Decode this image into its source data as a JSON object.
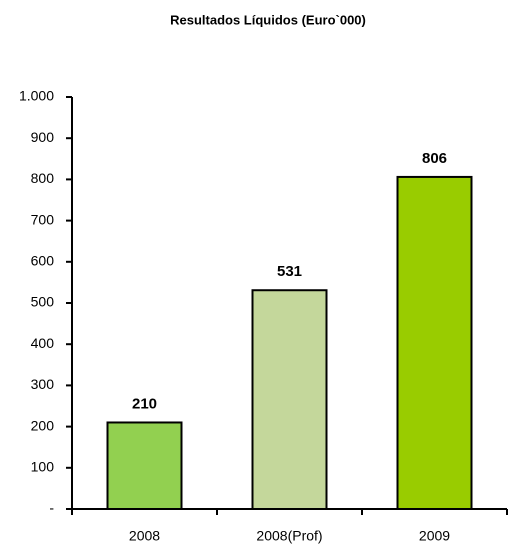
{
  "chart_data": {
    "type": "bar",
    "title": "Resultados Líquidos (Euro`000)",
    "categories": [
      "2008",
      "2008(Prof)",
      "2009"
    ],
    "values": [
      210,
      531,
      806
    ],
    "colors": [
      "#92d050",
      "#c4d79b",
      "#99cc00"
    ],
    "ylim": [
      0,
      1000
    ],
    "yticks": [
      {
        "value": 0,
        "label": "-"
      },
      100,
      200,
      300,
      400,
      500,
      600,
      700,
      800,
      900,
      {
        "value": 1000,
        "label": "1.000"
      }
    ],
    "grid": false
  }
}
